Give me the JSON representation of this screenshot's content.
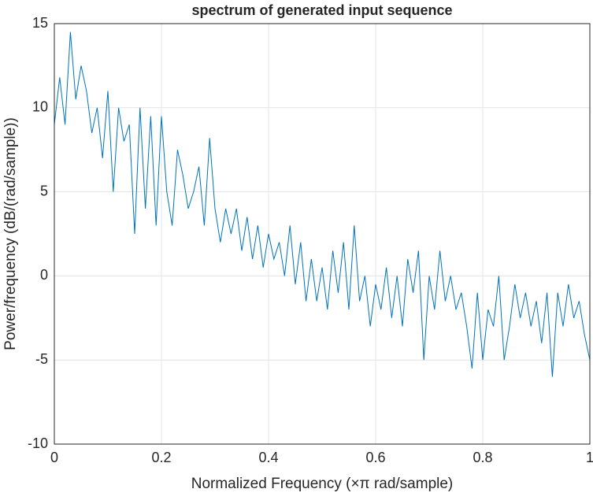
{
  "chart_data": {
    "type": "line",
    "title": "spectrum of generated input sequence",
    "x_label": "Normalized Frequency  (×π rad/sample)",
    "y_label": "Power/frequency (dB/(rad/sample))",
    "xlim": [
      0,
      1
    ],
    "ylim": [
      -10,
      15
    ],
    "xticks": [
      0,
      0.2,
      0.4,
      0.6,
      0.8,
      1
    ],
    "yticks": [
      -10,
      -5,
      0,
      5,
      10,
      15
    ],
    "grid": true,
    "x": [
      0,
      0.01,
      0.02,
      0.03,
      0.04,
      0.05,
      0.06,
      0.07,
      0.08,
      0.09,
      0.1,
      0.11,
      0.12,
      0.13,
      0.14,
      0.15,
      0.16,
      0.17,
      0.18,
      0.19,
      0.2,
      0.21,
      0.22,
      0.23,
      0.24,
      0.25,
      0.26,
      0.27,
      0.28,
      0.29,
      0.3,
      0.31,
      0.32,
      0.33,
      0.34,
      0.35,
      0.36,
      0.37,
      0.38,
      0.39,
      0.4,
      0.41,
      0.42,
      0.43,
      0.44,
      0.45,
      0.46,
      0.47,
      0.48,
      0.49,
      0.5,
      0.51,
      0.52,
      0.53,
      0.54,
      0.55,
      0.56,
      0.57,
      0.58,
      0.59,
      0.6,
      0.61,
      0.62,
      0.63,
      0.64,
      0.65,
      0.66,
      0.67,
      0.68,
      0.69,
      0.7,
      0.71,
      0.72,
      0.73,
      0.74,
      0.75,
      0.76,
      0.77,
      0.78,
      0.79,
      0.8,
      0.81,
      0.82,
      0.83,
      0.84,
      0.85,
      0.86,
      0.87,
      0.88,
      0.89,
      0.9,
      0.91,
      0.92,
      0.93,
      0.94,
      0.95,
      0.96,
      0.97,
      0.98,
      0.99,
      1
    ],
    "series": [
      {
        "color": "#0072bd",
        "values": [
          9,
          11.8,
          9,
          14.5,
          10.5,
          12.5,
          11,
          8.5,
          10,
          7,
          11,
          5,
          10,
          8,
          9,
          2.5,
          10,
          4,
          9.5,
          3,
          9.5,
          5,
          3,
          7.5,
          6,
          4,
          5,
          6.5,
          3,
          8.2,
          4,
          2,
          4,
          2.5,
          4,
          1.5,
          3.5,
          1,
          3,
          0.5,
          2.5,
          1,
          2,
          0,
          3,
          -0.5,
          2,
          -1.5,
          1,
          -1.5,
          0.5,
          -2,
          1.5,
          -1,
          2,
          -2,
          3,
          -1.5,
          0,
          -3,
          -0.5,
          -2,
          0.5,
          -2.5,
          0,
          -3,
          1,
          -1,
          1.5,
          -5,
          0,
          -2,
          1.5,
          -1.5,
          0,
          -2,
          -1,
          -3,
          -5.5,
          -1,
          -5,
          -2,
          -3,
          0,
          -5,
          -3,
          -0.5,
          -2.5,
          -1,
          -3,
          -1.5,
          -4,
          -1,
          -6,
          -1,
          -3,
          -0.5,
          -2.5,
          -1.5,
          -3.5,
          -5
        ]
      }
    ]
  }
}
